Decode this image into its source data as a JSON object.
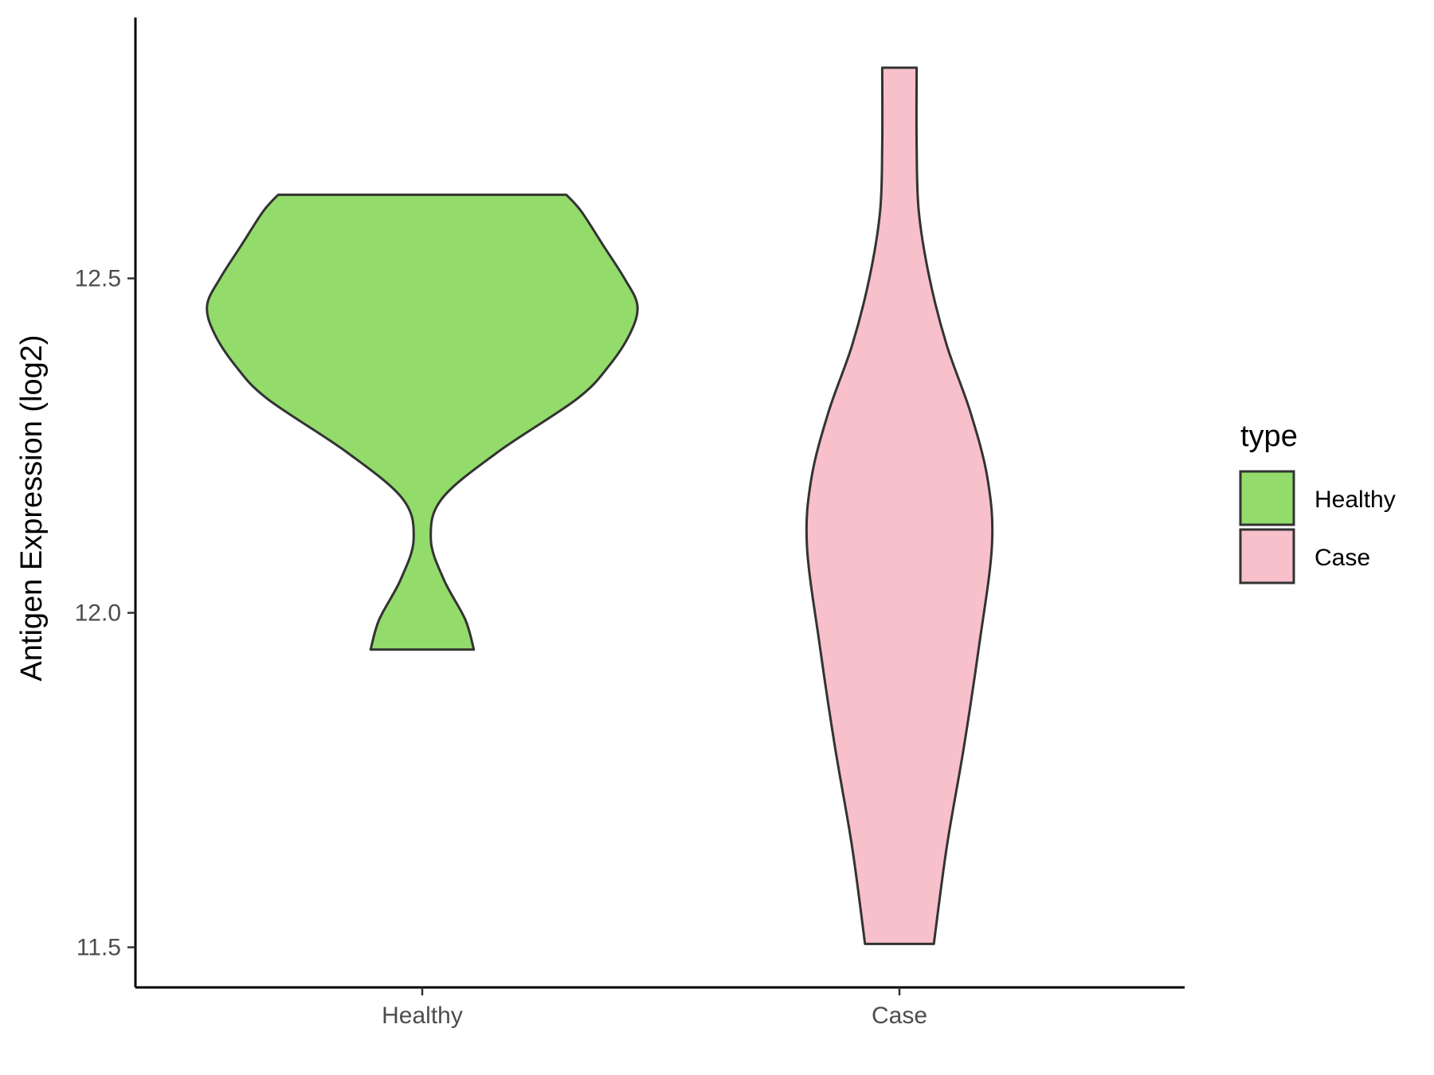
{
  "chart_data": {
    "type": "violin",
    "title": "",
    "xlabel": "",
    "ylabel": "Antigen Expression (log2)",
    "ylim": [
      11.44,
      12.89
    ],
    "yticks": [
      11.5,
      12.0,
      12.5
    ],
    "ytick_labels": [
      "11.5",
      "12.0",
      "12.5"
    ],
    "categories": [
      "Healthy",
      "Case"
    ],
    "grid": false,
    "legend": {
      "title": "type",
      "position": "right",
      "entries": [
        {
          "label": "Healthy",
          "color": "#93dc6b"
        },
        {
          "label": "Case",
          "color": "#f7c0cb"
        }
      ]
    },
    "series": [
      {
        "name": "Healthy",
        "color": "#93dc6b",
        "ymin": 11.945,
        "ymax": 12.625,
        "profile": [
          [
            11.945,
            0.24
          ],
          [
            11.99,
            0.2
          ],
          [
            12.05,
            0.1
          ],
          [
            12.11,
            0.04
          ],
          [
            12.17,
            0.09
          ],
          [
            12.24,
            0.35
          ],
          [
            12.32,
            0.72
          ],
          [
            12.37,
            0.87
          ],
          [
            12.42,
            0.97
          ],
          [
            12.46,
            1.0
          ],
          [
            12.5,
            0.94
          ],
          [
            12.55,
            0.84
          ],
          [
            12.6,
            0.74
          ],
          [
            12.625,
            0.67
          ]
        ]
      },
      {
        "name": "Case",
        "color": "#f7c0cb",
        "ymin": 11.505,
        "ymax": 12.815,
        "profile": [
          [
            11.505,
            0.16
          ],
          [
            11.65,
            0.22
          ],
          [
            11.8,
            0.3
          ],
          [
            11.95,
            0.37
          ],
          [
            12.1,
            0.43
          ],
          [
            12.2,
            0.41
          ],
          [
            12.3,
            0.33
          ],
          [
            12.4,
            0.22
          ],
          [
            12.5,
            0.14
          ],
          [
            12.6,
            0.09
          ],
          [
            12.7,
            0.08
          ],
          [
            12.815,
            0.08
          ]
        ]
      }
    ]
  }
}
